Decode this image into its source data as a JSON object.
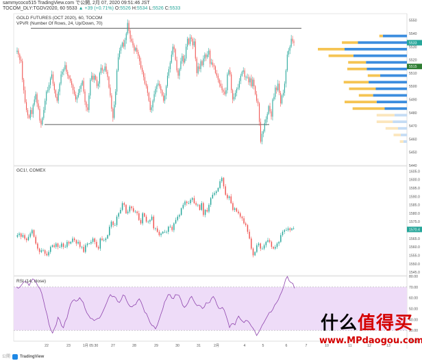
{
  "header": {
    "line1": "sammycoco515 TradingView.com で公開, 2月 07, 2020 09:51:46 JST",
    "symbol": "TOCOM_DLY:TGDV2020, 60 5533",
    "change": "▲ +39 (+0.71%)",
    "ohlc_o_label": "O:",
    "ohlc_o": "5526",
    "ohlc_h_label": "H:",
    "ohlc_h": "5534",
    "ohlc_l_label": "L:",
    "ohlc_l": "5526",
    "ohlc_c_label": "C:",
    "ohlc_c": "5533"
  },
  "panels": {
    "main": {
      "title": "GOLD FUTURES (OCT 2020), 60, TOCOM",
      "indicator": "VPVR (Number Of Rows, 24, Up/Down, 70)",
      "y_ticks": [
        "5550",
        "5540",
        "5530",
        "5520",
        "5510",
        "5500",
        "5490",
        "5480",
        "5470",
        "5460",
        "5450",
        "5440"
      ],
      "last_price": "5533",
      "last_price_2": "5515"
    },
    "gc": {
      "title": "GC1!, COMEX",
      "y_ticks": [
        "1605.0",
        "1600.0",
        "1595.0",
        "1590.0",
        "1585.0",
        "1580.0",
        "1575.0",
        "1570.0",
        "1565.0",
        "1560.0",
        "1555.0",
        "1550.0",
        "1545.0"
      ],
      "last_price": "1570.4"
    },
    "rsi": {
      "title": "RSI (14, close)",
      "y_ticks": [
        "80.00",
        "70.00",
        "60.00",
        "50.00",
        "40.00",
        "30.00",
        "20.00"
      ]
    }
  },
  "x_ticks": [
    "22",
    "23",
    "1月 05:30",
    "27",
    "28",
    "29",
    "30",
    "31",
    "2月",
    "4",
    "5",
    "6",
    "7",
    "10",
    "11",
    "12",
    "13"
  ],
  "footer": {
    "published": "公開",
    "brand": "TradingView"
  },
  "watermark": {
    "cn": "什么值得买",
    "url": "www.MPdaogou.com"
  },
  "colors": {
    "up": "#26a69a",
    "down": "#ef5350",
    "rsi_line": "#8e44ad",
    "rsi_band": "#eedcf8",
    "vp_up": "#3c8dde",
    "vp_down": "#f5c453",
    "vp_up_light": "#c5dcf4",
    "vp_down_light": "#fbe6bd"
  },
  "chart_data": [
    {
      "type": "candlestick",
      "title": "GOLD FUTURES (OCT 2020), 60, TOCOM",
      "ylim": [
        5440,
        5555
      ],
      "trendlines": [
        {
          "name": "resistance",
          "value": 5544
        },
        {
          "name": "support",
          "value": 5471
        }
      ],
      "path": [
        5526,
        5527,
        5524,
        5520,
        5519,
        5505,
        5497,
        5488,
        5482,
        5478,
        5476,
        5482,
        5479,
        5486,
        5490,
        5494,
        5487,
        5483,
        5474,
        5471,
        5476,
        5482,
        5489,
        5496,
        5497,
        5501,
        5506,
        5509,
        5502,
        5497,
        5492,
        5489,
        5496,
        5502,
        5509,
        5511,
        5513,
        5516,
        5511,
        5508,
        5506,
        5504,
        5501,
        5497,
        5494,
        5490,
        5492,
        5495,
        5498,
        5501,
        5504,
        5496,
        5488,
        5484,
        5482,
        5493,
        5505,
        5508,
        5505,
        5508,
        5505,
        5500,
        5502,
        5510,
        5514,
        5512,
        5512,
        5515,
        5511,
        5507,
        5499,
        5493,
        5483,
        5476,
        5486,
        5496,
        5512,
        5522,
        5527,
        5530,
        5533,
        5530,
        5535,
        5540,
        5548,
        5542,
        5536,
        5534,
        5531,
        5527,
        5529,
        5526,
        5523,
        5519,
        5514,
        5511,
        5507,
        5502,
        5500,
        5495,
        5489,
        5482,
        5484,
        5489,
        5494,
        5498,
        5501,
        5502,
        5500,
        5497,
        5493,
        5489,
        5493,
        5500,
        5508,
        5513,
        5518,
        5524,
        5530,
        5528,
        5520,
        5512,
        5508,
        5513,
        5519,
        5523,
        5518,
        5521,
        5530,
        5536,
        5532,
        5537,
        5536,
        5531,
        5534,
        5521,
        5510,
        5515,
        5513,
        5519,
        5516,
        5521,
        5524,
        5522,
        5524,
        5527,
        5517,
        5518,
        5516,
        5515,
        5510,
        5508,
        5505,
        5502,
        5500,
        5497,
        5496,
        5494,
        5497,
        5509,
        5512,
        5509,
        5497,
        5490,
        5492,
        5495,
        5498,
        5499,
        5504,
        5508,
        5511,
        5512,
        5507,
        5507,
        5507,
        5503,
        5506,
        5500,
        5505,
        5500,
        5494,
        5489,
        5487,
        5473,
        5458,
        5464,
        5466,
        5472,
        5475,
        5479,
        5485,
        5481,
        5477,
        5490,
        5492,
        5499,
        5497,
        5502,
        5495,
        5487,
        5493,
        5495,
        5502,
        5512,
        5524,
        5527,
        5530,
        5536,
        5534,
        5533
      ]
    },
    {
      "type": "volume_profile",
      "title": "VPVR (Number Of Rows, 24, Up/Down, 70)",
      "rows": [
        {
          "price": 5538,
          "up": 0.27,
          "down": 0.04
        },
        {
          "price": 5533,
          "up": 0.55,
          "down": 0.18
        },
        {
          "price": 5528,
          "up": 0.7,
          "down": 0.3
        },
        {
          "price": 5523,
          "up": 0.6,
          "down": 0.28
        },
        {
          "price": 5518,
          "up": 0.46,
          "down": 0.2
        },
        {
          "price": 5513,
          "up": 0.45,
          "down": 0.22
        },
        {
          "price": 5508,
          "up": 0.3,
          "down": 0.14
        },
        {
          "price": 5503,
          "up": 0.43,
          "down": 0.28
        },
        {
          "price": 5498,
          "up": 0.35,
          "down": 0.3
        },
        {
          "price": 5493,
          "up": 0.38,
          "down": 0.16
        },
        {
          "price": 5488,
          "up": 0.34,
          "down": 0.36
        },
        {
          "price": 5483,
          "up": 0.25,
          "down": 0.36
        },
        {
          "price": 5478,
          "up": 0.14,
          "down": 0.2
        },
        {
          "price": 5473,
          "up": 0.16,
          "down": 0.18
        },
        {
          "price": 5468,
          "up": 0.1,
          "down": 0.14
        },
        {
          "price": 5463,
          "up": 0.07,
          "down": 0.08
        },
        {
          "price": 5458,
          "up": 0.04,
          "down": 0.04
        }
      ]
    },
    {
      "type": "candlestick",
      "title": "GC1!, COMEX",
      "ylim": [
        1543,
        1608
      ],
      "path": [
        1566,
        1567,
        1568,
        1566,
        1567,
        1565,
        1564,
        1566,
        1568,
        1570,
        1566,
        1562,
        1559,
        1557,
        1558,
        1558,
        1556,
        1555,
        1557,
        1560,
        1561,
        1560,
        1562,
        1560,
        1560,
        1562,
        1560,
        1560,
        1563,
        1562,
        1563,
        1565,
        1564,
        1562,
        1563,
        1560,
        1560,
        1557,
        1561,
        1562,
        1562,
        1563,
        1565,
        1563,
        1560,
        1559,
        1565,
        1564,
        1564,
        1565,
        1567,
        1572,
        1575,
        1573,
        1573,
        1578,
        1580,
        1582,
        1586,
        1585,
        1580,
        1581,
        1584,
        1583,
        1581,
        1581,
        1580,
        1576,
        1574,
        1580,
        1578,
        1575,
        1575,
        1576,
        1578,
        1571,
        1571,
        1569,
        1567,
        1568,
        1569,
        1569,
        1569,
        1572,
        1572,
        1570,
        1574,
        1576,
        1578,
        1579,
        1583,
        1585,
        1587,
        1586,
        1586,
        1588,
        1589,
        1586,
        1585,
        1585,
        1582,
        1586,
        1579,
        1582,
        1581,
        1585,
        1589,
        1591,
        1592,
        1593,
        1595,
        1599,
        1601,
        1596,
        1591,
        1589,
        1590,
        1586,
        1582,
        1583,
        1581,
        1580,
        1578,
        1577,
        1574,
        1573,
        1569,
        1565,
        1559,
        1555,
        1557,
        1561,
        1562,
        1559,
        1559,
        1561,
        1563,
        1564,
        1563,
        1560,
        1559,
        1560,
        1562,
        1563,
        1567,
        1569,
        1570,
        1570,
        1571,
        1570,
        1571,
        1571
      ]
    },
    {
      "type": "line",
      "title": "RSI (14, close)",
      "ylim": [
        20,
        80
      ],
      "bands": [
        30,
        70
      ],
      "values": [
        70.1,
        68.9,
        70.1,
        72.3,
        74.6,
        75.2,
        74.3,
        71.4,
        74.9,
        77.5,
        76.6,
        73.9,
        70.5,
        68.6,
        64.2,
        57.5,
        50.2,
        44.2,
        35.8,
        30.6,
        27.5,
        31.6,
        35.1,
        42.1,
        39.5,
        34.2,
        32.4,
        38.3,
        41.5,
        48.4,
        54.2,
        57.1,
        58.3,
        56.9,
        57.8,
        60.2,
        57.8,
        55.7,
        50.1,
        46.1,
        43.7,
        41.1,
        40.8,
        39.0,
        40.0,
        41.0,
        41.4,
        44.3,
        47.9,
        51.7,
        55.6,
        60.0,
        63.0,
        61.1,
        61.4,
        60.2,
        56.7,
        55.7,
        58.3,
        62.7,
        61.8,
        57.5,
        54.1,
        52.0,
        51.7,
        53.3,
        53.8,
        57.2,
        59.1,
        56.2,
        51.9,
        46.8,
        45.4,
        41.4,
        37.1,
        34.6,
        33.9,
        31.4,
        34.8,
        39.9,
        45.0,
        49.6,
        56.1,
        59.0,
        63.0,
        63.0,
        59.8,
        59.3,
        63.0,
        62.8,
        62.3,
        58.5,
        53.3,
        51.2,
        52.8,
        55.5,
        59.6,
        61.4,
        57.9,
        54.8,
        52.8,
        53.3,
        52.4,
        50.1,
        51.6,
        55.5,
        55.2,
        55.7,
        59.6,
        61.3,
        58.6,
        53.8,
        50.4,
        50.0,
        51.2,
        48.8,
        43.9,
        38.6,
        32.6,
        35.8,
        36.3,
        35.1,
        40.2,
        43.2,
        40.4,
        38.6,
        37.2,
        39.2,
        38.8,
        36.9,
        34.0,
        31.9,
        29.1,
        25.2,
        27.9,
        30.9,
        34.6,
        37.2,
        40.3,
        43.3,
        46.5,
        47.0,
        49.5,
        53.4,
        55.5,
        58.3,
        62.5,
        66.0,
        70.6,
        76.8,
        79.8,
        75.7,
        74.1,
        73.4,
        68.9
      ]
    }
  ]
}
